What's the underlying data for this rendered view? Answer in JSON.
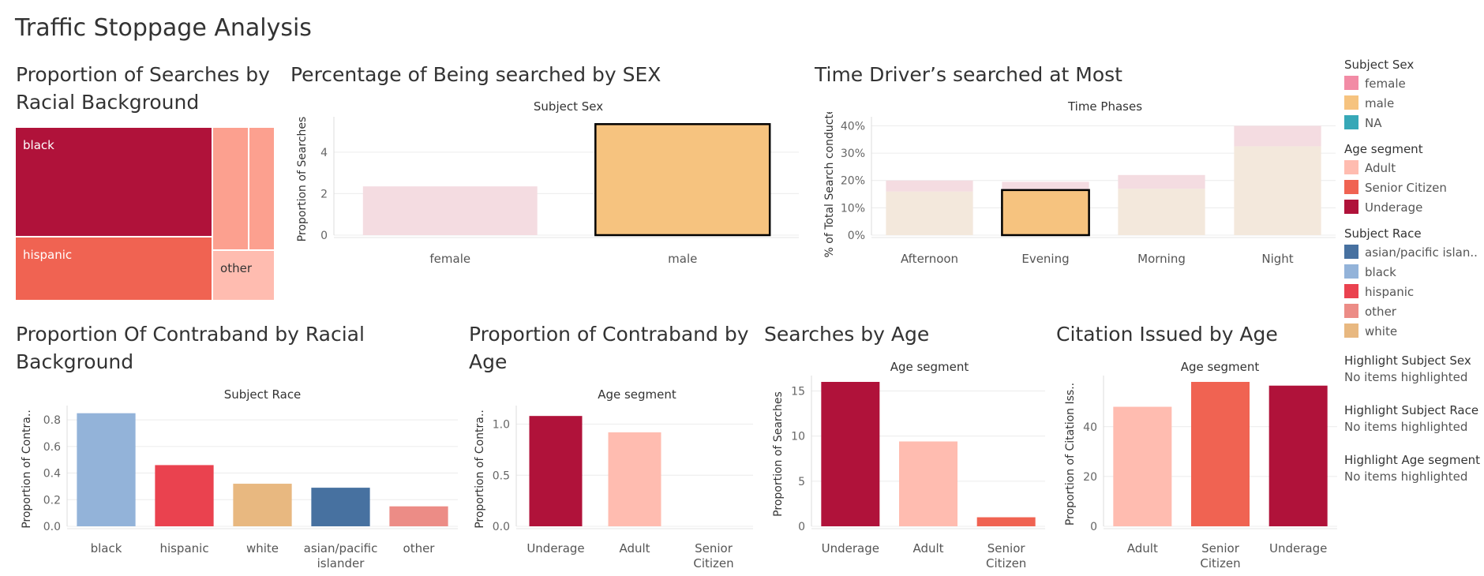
{
  "dashboard": {
    "title": "Traffic Stoppage Analysis"
  },
  "colors": {
    "female": "#f28ba5",
    "male": "#f6c37f",
    "na": "#37a8b7",
    "adult": "#ffbcb0",
    "senior": "#f06352",
    "underage": "#b0123a",
    "asian": "#4771a0",
    "black": "#93b3d9",
    "hispanic": "#ea424f",
    "other": "#ec8c86",
    "white": "#e8b880",
    "faded_pink": "#f4dce1",
    "faded_beige": "#f3e8dc"
  },
  "legends": {
    "sex": {
      "title": "Subject Sex",
      "items": [
        {
          "label": "female",
          "color": "#f28ba5"
        },
        {
          "label": "male",
          "color": "#f6c37f"
        },
        {
          "label": "NA",
          "color": "#37a8b7"
        }
      ]
    },
    "age": {
      "title": "Age segment",
      "items": [
        {
          "label": "Adult",
          "color": "#ffbcb0"
        },
        {
          "label": "Senior Citizen",
          "color": "#f06352"
        },
        {
          "label": "Underage",
          "color": "#b0123a"
        }
      ]
    },
    "race": {
      "title": "Subject Race",
      "items": [
        {
          "label": "asian/pacific islan..",
          "color": "#4771a0"
        },
        {
          "label": "black",
          "color": "#93b3d9"
        },
        {
          "label": "hispanic",
          "color": "#ea424f"
        },
        {
          "label": "other",
          "color": "#ec8c86"
        },
        {
          "label": "white",
          "color": "#e8b880"
        }
      ]
    }
  },
  "highlights": [
    {
      "title": "Highlight Subject Sex",
      "value": "No items highlighted"
    },
    {
      "title": "Highlight Subject Race",
      "value": "No items highlighted"
    },
    {
      "title": "Highlight Age segment",
      "value": "No items highlighted"
    }
  ],
  "chart_data": [
    {
      "id": "treemap",
      "type": "treemap",
      "title": "Proportion of Searches by Racial Background",
      "items": [
        {
          "label": "black",
          "value": 0.48,
          "color": "#b0123a",
          "shown": true
        },
        {
          "label": "hispanic",
          "value": 0.28,
          "color": "#f06352",
          "shown": true
        },
        {
          "label": "",
          "value": 0.1,
          "color": "#fca08f",
          "shown": false
        },
        {
          "label": "",
          "value": 0.07,
          "color": "#fca08f",
          "shown": false
        },
        {
          "label": "other",
          "value": 0.07,
          "color": "#ffbcb0",
          "shown": true
        }
      ]
    },
    {
      "id": "sex",
      "type": "bar",
      "title": "Percentage of Being searched by SEX",
      "header": "Subject Sex",
      "ylabel": "Proportion of Searches",
      "ylim": [
        0,
        5.4
      ],
      "yticks": [
        0,
        2,
        4
      ],
      "categories": [
        "female",
        "male"
      ],
      "values": [
        2.35,
        5.35
      ],
      "colors": [
        "#f4dce1",
        "#f6c37f"
      ],
      "selected": [
        false,
        true
      ]
    },
    {
      "id": "time",
      "type": "stacked_bar",
      "title": "Time Driver’s searched at Most",
      "header": "Time Phases",
      "ylabel": "% of Total Search conducted",
      "ylim": [
        0,
        41
      ],
      "yticks": [
        "0%",
        "10%",
        "20%",
        "30%",
        "40%"
      ],
      "ytick_values": [
        0,
        10,
        20,
        30,
        40
      ],
      "categories": [
        "Afternoon",
        "Evening",
        "Morning",
        "Night"
      ],
      "series": [
        {
          "values": [
            16,
            16.5,
            17,
            32.5
          ],
          "colors": [
            "#f3e8dc",
            "#f6c37f",
            "#f3e8dc",
            "#f3e8dc"
          ]
        },
        {
          "values": [
            4,
            3,
            5,
            7.5
          ],
          "colors": [
            "#f4dce1",
            "#f4dce1",
            "#f4dce1",
            "#f4dce1"
          ]
        }
      ],
      "selected": [
        false,
        true,
        false,
        false
      ]
    },
    {
      "id": "contra_race",
      "type": "bar",
      "title": "Proportion Of Contraband by Racial Background",
      "header": "Subject Race",
      "ylabel": "Proportion of Contra..",
      "ylim": [
        0,
        0.86
      ],
      "yticks": [
        "0.0",
        "0.2",
        "0.4",
        "0.6",
        "0.8"
      ],
      "ytick_values": [
        0,
        0.2,
        0.4,
        0.6,
        0.8
      ],
      "categories": [
        "black",
        "hispanic",
        "white",
        "asian/pacific islander",
        "other"
      ],
      "category_lines": [
        [
          "black"
        ],
        [
          "hispanic"
        ],
        [
          "white"
        ],
        [
          "asian/pacific",
          "islander"
        ],
        [
          "other"
        ]
      ],
      "values": [
        0.85,
        0.46,
        0.32,
        0.29,
        0.15
      ],
      "colors": [
        "#93b3d9",
        "#ea424f",
        "#e8b880",
        "#4771a0",
        "#ec8c86"
      ]
    },
    {
      "id": "contra_age",
      "type": "bar",
      "title": "Proportion of Contraband by Age",
      "header": "Age segment",
      "ylabel": "Proportion of Contra..",
      "ylim": [
        0,
        1.12
      ],
      "yticks": [
        "0.0",
        "0.5",
        "1.0"
      ],
      "ytick_values": [
        0,
        0.5,
        1.0
      ],
      "categories": [
        "Underage",
        "Adult",
        "Senior Citizen"
      ],
      "category_lines": [
        [
          "Underage"
        ],
        [
          "Adult"
        ],
        [
          "Senior",
          "Citizen"
        ]
      ],
      "values": [
        1.08,
        0.92,
        0
      ],
      "colors": [
        "#b0123a",
        "#ffbcb0",
        "#f06352"
      ]
    },
    {
      "id": "search_age",
      "type": "bar",
      "title": "Searches by Age",
      "header": "Age segment",
      "ylabel": "Proportion of Searches",
      "ylim": [
        0,
        16
      ],
      "yticks": [
        "0",
        "5",
        "10",
        "15"
      ],
      "ytick_values": [
        0,
        5,
        10,
        15
      ],
      "categories": [
        "Underage",
        "Adult",
        "Senior Citizen"
      ],
      "category_lines": [
        [
          "Underage"
        ],
        [
          "Adult"
        ],
        [
          "Senior",
          "Citizen"
        ]
      ],
      "values": [
        16.0,
        9.4,
        1.0
      ],
      "colors": [
        "#b0123a",
        "#ffbcb0",
        "#f06352"
      ]
    },
    {
      "id": "citation_age",
      "type": "bar",
      "title": "Citation Issued by Age",
      "header": "Age segment",
      "ylabel": "Proportion of Citation Iss..",
      "ylim": [
        0,
        58
      ],
      "yticks": [
        "0",
        "20",
        "40"
      ],
      "ytick_values": [
        0,
        20,
        40
      ],
      "categories": [
        "Adult",
        "Senior Citizen",
        "Underage"
      ],
      "category_lines": [
        [
          "Adult"
        ],
        [
          "Senior",
          "Citizen"
        ],
        [
          "Underage"
        ]
      ],
      "values": [
        48,
        58,
        56.5
      ],
      "colors": [
        "#ffbcb0",
        "#f06352",
        "#b0123a"
      ]
    }
  ]
}
